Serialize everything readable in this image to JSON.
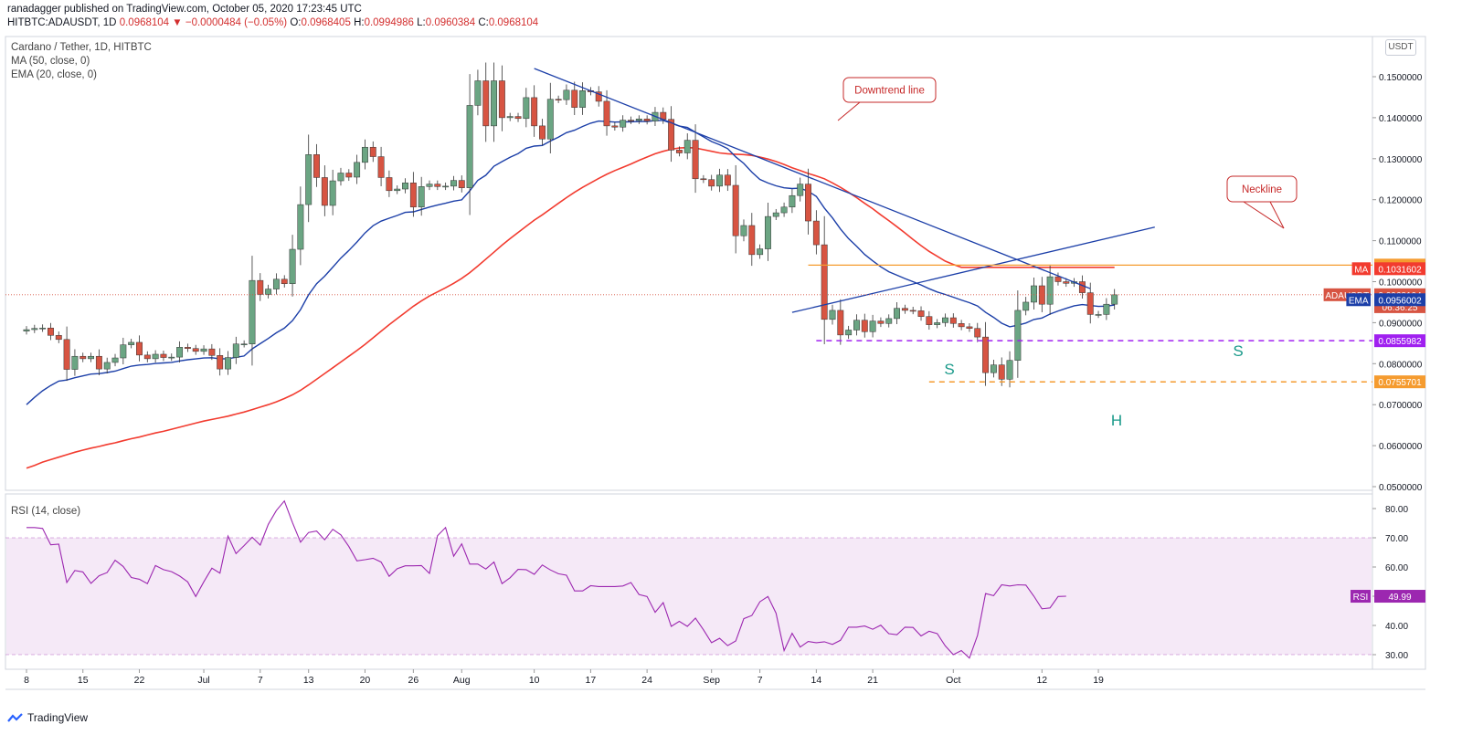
{
  "header": {
    "published": "ranadagger published on TradingView.com, October 05, 2020 17:23:45 UTC",
    "symbol": "HITBTC:ADAUSDT, 1D",
    "last": "0.0968104",
    "change": "−0.0000484 (−0.05%)",
    "o_label": "O:",
    "o": "0.0968405",
    "h_label": "H:",
    "h": "0.0994986",
    "l_label": "L:",
    "l": "0.0960384",
    "c_label": "C:",
    "c": "0.0968104"
  },
  "legend": {
    "title": "Cardano / Tether, 1D, HITBTC",
    "ma": "MA (50, close, 0)",
    "ema": "EMA (20, close, 0)",
    "rsi": "RSI (14, close)"
  },
  "unit": "USDT",
  "footer": {
    "brand": "TradingView"
  },
  "colors": {
    "up": "#6ba583",
    "down": "#d75442",
    "ma": "#f23b2f",
    "ema": "#1c3fa8",
    "trend": "#1c3fa8",
    "resist": "#f59b2f",
    "support": "#9c27b0",
    "rsi": "#9c27b0"
  },
  "chart_data": [
    {
      "type": "candlestick",
      "title": "Cardano / Tether, 1D, HITBTC",
      "ylim": [
        0.05,
        0.155
      ],
      "y_ticks": [
        "0.1500000",
        "0.1400000",
        "0.1300000",
        "0.1200000",
        "0.1100000",
        "0.1000000",
        "0.0900000",
        "0.0800000",
        "0.0700000",
        "0.0600000",
        "0.0500000"
      ],
      "x_ticks": [
        {
          "day": 8,
          "label": "8"
        },
        {
          "day": 15,
          "label": "15"
        },
        {
          "day": 22,
          "label": "22"
        },
        {
          "day": 30,
          "label": "Jul"
        },
        {
          "day": 37,
          "label": "7"
        },
        {
          "day": 43,
          "label": "13"
        },
        {
          "day": 50,
          "label": "20"
        },
        {
          "day": 56,
          "label": "26"
        },
        {
          "day": 62,
          "label": "Aug"
        },
        {
          "day": 71,
          "label": "10"
        },
        {
          "day": 78,
          "label": "17"
        },
        {
          "day": 85,
          "label": "24"
        },
        {
          "day": 93,
          "label": "Sep"
        },
        {
          "day": 99,
          "label": "7"
        },
        {
          "day": 106,
          "label": "14"
        },
        {
          "day": 113,
          "label": "21"
        },
        {
          "day": 123,
          "label": "Oct"
        },
        {
          "day": 134,
          "label": "12"
        },
        {
          "day": 141,
          "label": "19"
        }
      ],
      "first_day": 8,
      "candles_close": [
        0.0883,
        0.0886,
        0.0887,
        0.0869,
        0.0859,
        0.0786,
        0.0818,
        0.0812,
        0.0818,
        0.0787,
        0.0803,
        0.0814,
        0.0846,
        0.0852,
        0.0821,
        0.0812,
        0.0823,
        0.0815,
        0.0816,
        0.084,
        0.0837,
        0.083,
        0.0836,
        0.082,
        0.0787,
        0.0815,
        0.0848,
        0.0848,
        0.1003,
        0.0969,
        0.0982,
        0.1006,
        0.0995,
        0.1079,
        0.1188,
        0.131,
        0.1254,
        0.1186,
        0.1246,
        0.1265,
        0.1255,
        0.1291,
        0.1328,
        0.1305,
        0.1254,
        0.1222,
        0.1226,
        0.1241,
        0.1182,
        0.1232,
        0.1238,
        0.1232,
        0.1233,
        0.1247,
        0.1229,
        0.143,
        0.149,
        0.138,
        0.149,
        0.14,
        0.1403,
        0.1398,
        0.1449,
        0.138,
        0.1348,
        0.1445,
        0.1444,
        0.1467,
        0.1425,
        0.1466,
        0.1463,
        0.144,
        0.138,
        0.1377,
        0.1394,
        0.1393,
        0.1397,
        0.1392,
        0.1413,
        0.1396,
        0.1321,
        0.1314,
        0.1345,
        0.1251,
        0.1249,
        0.1233,
        0.126,
        0.1235,
        0.1112,
        0.1137,
        0.1066,
        0.108,
        0.1159,
        0.1168,
        0.1182,
        0.121,
        0.1238,
        0.1148,
        0.109,
        0.0908,
        0.093,
        0.087,
        0.0882,
        0.0906,
        0.0878,
        0.0904,
        0.0898,
        0.091,
        0.0935,
        0.093,
        0.0929,
        0.0915,
        0.0895,
        0.09,
        0.0912,
        0.0898,
        0.089,
        0.0886,
        0.0865,
        0.0778,
        0.0797,
        0.0762,
        0.0808,
        0.093,
        0.095,
        0.099,
        0.0945,
        0.1012,
        0.1,
        0.0996,
        0.1,
        0.0973,
        0.092,
        0.092,
        0.0945,
        0.0968
      ],
      "annotations": [
        "Downtrend line",
        "Neckline",
        "S",
        "H",
        "S"
      ],
      "lines": {
        "downtrend": {
          "from": {
            "day": 71,
            "value": 0.152
          },
          "to": {
            "day": 140,
            "value": 0.0983
          }
        },
        "neckline": {
          "from": {
            "day": 103,
            "value": 0.0925
          },
          "to": {
            "day": 148,
            "value": 0.1133
          }
        },
        "resistance": {
          "value": 0.104044,
          "from_day": 105
        },
        "support_S": {
          "value": 0.0855982,
          "from_day": 106
        },
        "support_H": {
          "value": 0.0755701,
          "from_day": 120
        }
      },
      "price_labels": [
        {
          "name": "resistance",
          "text": "0.1040440",
          "value": 0.104044
        },
        {
          "name": "MA",
          "text": "0.1031602",
          "value": 0.1031602
        },
        {
          "name": "ADAUSDT",
          "text": "0.0968104",
          "value": 0.0968104
        },
        {
          "name": "countdown",
          "text": "06:36:25",
          "value": 0.0939
        },
        {
          "name": "EMA",
          "text": "0.0956002",
          "value": 0.0956002
        },
        {
          "name": "support",
          "text": "0.0855982",
          "value": 0.0855982
        },
        {
          "name": "low",
          "text": "0.0755701",
          "value": 0.0755701
        }
      ],
      "series_ma_name": "MA",
      "series_ema_name": "EMA"
    },
    {
      "type": "line",
      "title": "RSI (14, close)",
      "ylim": [
        25,
        85
      ],
      "y_ticks": [
        "80.00",
        "70.00",
        "60.00",
        "50.00",
        "40.00",
        "30.00"
      ],
      "band": [
        30,
        70
      ],
      "last_label": "RSI",
      "last_value": "49.99",
      "values": [
        73.5,
        73.5,
        73.2,
        67.6,
        67.8,
        54.7,
        58.8,
        58.3,
        54.4,
        57.0,
        58.1,
        62.3,
        60.2,
        56.4,
        55.8,
        54.3,
        60.5,
        59.1,
        58.4,
        56.9,
        54.9,
        49.9,
        54.9,
        59.6,
        57.9,
        70.6,
        64.6,
        67.3,
        70.2,
        67.5,
        74.6,
        79.3,
        82.6,
        75.2,
        68.5,
        71.8,
        72.3,
        69.3,
        72.9,
        71.0,
        67.0,
        62.1,
        62.5,
        63.0,
        61.7,
        56.8,
        59.4,
        60.4,
        60.4,
        60.5,
        57.8,
        70.7,
        73.5,
        63.7,
        67.9,
        61.0,
        61.0,
        59.3,
        61.7,
        54.3,
        56.3,
        59.2,
        59.1,
        57.5,
        60.7,
        59.0,
        57.7,
        57.2,
        51.8,
        51.8,
        53.6,
        53.3,
        53.3,
        53.3,
        53.5,
        54.7,
        50.6,
        49.9,
        44.5,
        47.8,
        39.7,
        41.4,
        39.7,
        42.5,
        38.5,
        34.1,
        35.6,
        33.1,
        34.7,
        42.3,
        43.4,
        48.1,
        49.9,
        44.2,
        31.4,
        37.3,
        32.6,
        34.5,
        34.1,
        34.4,
        33.5,
        34.9,
        39.4,
        39.4,
        39.8,
        38.7,
        40.1,
        37.2,
        36.8,
        39.4,
        39.3,
        36.4,
        38.0,
        37.2,
        33.0,
        30.0,
        31.4,
        28.8,
        36.6,
        50.9,
        50.2,
        53.9,
        53.5,
        53.9,
        53.8,
        50.0,
        45.7,
        46.0,
        49.9,
        49.99
      ]
    }
  ]
}
